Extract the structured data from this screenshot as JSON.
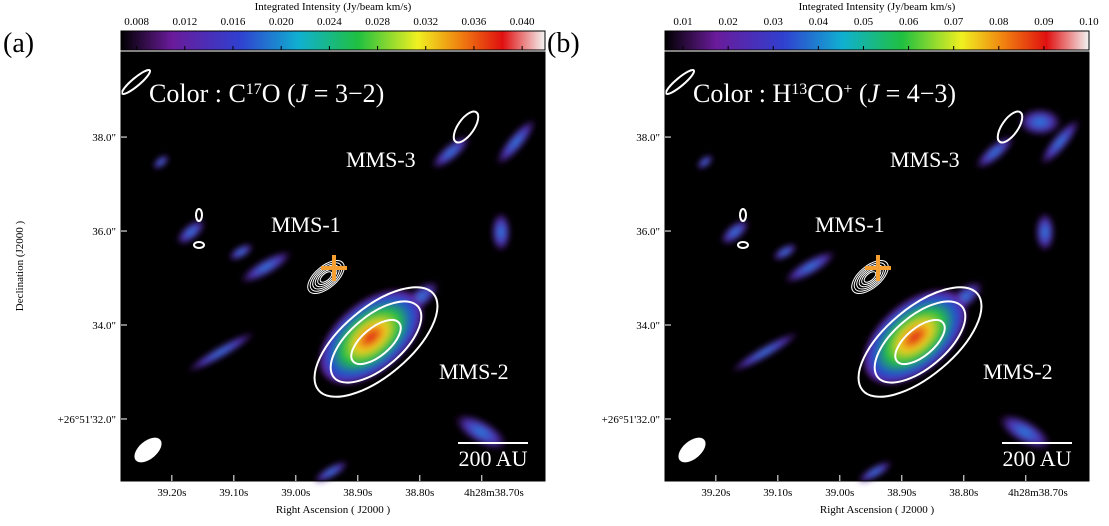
{
  "panels": [
    {
      "label": "(a)",
      "colorbar": {
        "title": "Integrated Intensity (Jy/beam km/s)",
        "lim": [
          0.0067,
          0.0419
        ],
        "ticks": [
          0.008,
          0.012,
          0.016,
          {
            "value": 0.02,
            "label": "0.020"
          },
          0.024,
          0.028,
          0.032,
          0.036,
          {
            "value": 0.04,
            "label": "0.040"
          }
        ]
      },
      "annotation": [
        "Color : C",
        "17",
        "O (",
        "J",
        " = 3−2)"
      ],
      "sources": [
        "MMS-1",
        "MMS-2",
        "MMS-3"
      ],
      "scalebar": "200 AU",
      "xlabel": "Right Ascension ( J2000 )",
      "ylabel": "Declination (J2000 )",
      "xlim": [
        39.282,
        38.598
      ],
      "xticks": [
        {
          "value": 39.2,
          "label": "39.20s"
        },
        {
          "value": 39.1,
          "label": "39.10s"
        },
        {
          "value": 39.0,
          "label": "39.00s"
        },
        {
          "value": 38.9,
          "label": "38.90s"
        },
        {
          "value": 38.8,
          "label": "38.80s"
        },
        {
          "value": 38.7,
          "label": "4h28m38.70s"
        }
      ],
      "ylim": [
        30.68,
        39.81
      ],
      "yticks": [
        {
          "value": 38,
          "label": "38.0\""
        },
        {
          "value": 36,
          "label": "36.0\""
        },
        {
          "value": 34,
          "label": "34.0\""
        },
        {
          "value": 32,
          "label": "+26°51'32.0\""
        }
      ]
    },
    {
      "label": "(b)",
      "colorbar": {
        "title": "Integrated Intensity (Jy/beam km/s)",
        "lim": [
          0.006,
          0.1
        ],
        "ticks": [
          0.01,
          0.02,
          0.03,
          0.04,
          0.05,
          0.06,
          0.07,
          0.08,
          0.09,
          {
            "value": 0.1,
            "label": "0.10"
          }
        ]
      },
      "annotation": [
        "Color : H",
        "13",
        "CO",
        "+",
        " (",
        "J",
        " = 4−3)"
      ],
      "sources": [
        "MMS-1",
        "MMS-2",
        "MMS-3"
      ],
      "scalebar": "200 AU",
      "xlabel": "Right Ascension ( J2000 )",
      "xlim": [
        39.282,
        38.598
      ],
      "xticks": [
        {
          "value": 39.2,
          "label": "39.20s"
        },
        {
          "value": 39.1,
          "label": "39.10s"
        },
        {
          "value": 39.0,
          "label": "39.00s"
        },
        {
          "value": 38.9,
          "label": "38.90s"
        },
        {
          "value": 38.8,
          "label": "38.80s"
        },
        {
          "value": 38.7,
          "label": "4h28m38.70s"
        }
      ],
      "ylim": [
        30.68,
        39.81
      ],
      "yticks": [
        {
          "value": 38,
          "label": "38.0\""
        },
        {
          "value": 36,
          "label": "36.0\""
        },
        {
          "value": 34,
          "label": "34.0\""
        },
        {
          "value": 32,
          "label": "+26°51'32.0\""
        }
      ]
    }
  ]
}
